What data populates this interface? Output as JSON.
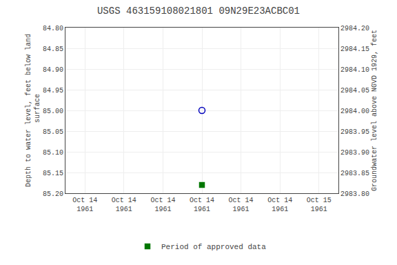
{
  "chart_data": {
    "type": "scatter",
    "title": "USGS 463159108021801 09N29E23ACBC01",
    "y_label": "Depth to water level, feet below land\n surface",
    "y2_label": "Groundwater level above NGVD 1929, feet",
    "categories": [
      "Oct 14\n1961",
      "Oct 14\n1961",
      "Oct 14\n1961",
      "Oct 14\n1961",
      "Oct 14\n1961",
      "Oct 14\n1961",
      "Oct 15\n1961"
    ],
    "series": [
      {
        "color": "#0000bb",
        "marker": "open_circle",
        "values": [
          null,
          null,
          null,
          85.0,
          null,
          null,
          null
        ]
      },
      {
        "name": "Period of approved data",
        "color": "#007700",
        "marker": "square",
        "values": [
          null,
          null,
          null,
          85.18,
          null,
          null,
          null
        ]
      }
    ],
    "ylim": [
      85.2,
      84.8
    ],
    "yticks": [
      {
        "value": 84.8,
        "label": "84.80"
      },
      {
        "value": 84.85,
        "label": "84.85"
      },
      {
        "value": 84.9,
        "label": "84.90"
      },
      {
        "value": 84.95,
        "label": "84.95"
      },
      {
        "value": 85.0,
        "label": "85.00"
      },
      {
        "value": 85.05,
        "label": "85.05"
      },
      {
        "value": 85.1,
        "label": "85.10"
      },
      {
        "value": 85.15,
        "label": "85.15"
      },
      {
        "value": 85.2,
        "label": "85.20"
      }
    ],
    "y2lim": [
      2983.8,
      2984.2
    ],
    "y2ticks": [
      {
        "value": 2983.8,
        "label": "2983.80"
      },
      {
        "value": 2983.85,
        "label": "2983.85"
      },
      {
        "value": 2983.9,
        "label": "2983.90"
      },
      {
        "value": 2983.95,
        "label": "2983.95"
      },
      {
        "value": 2984.0,
        "label": "2984.00"
      },
      {
        "value": 2984.05,
        "label": "2984.05"
      },
      {
        "value": 2984.1,
        "label": "2984.10"
      },
      {
        "value": 2984.15,
        "label": "2984.15"
      },
      {
        "value": 2984.2,
        "label": "2984.20"
      }
    ],
    "grid": true,
    "legend": "bottom"
  }
}
